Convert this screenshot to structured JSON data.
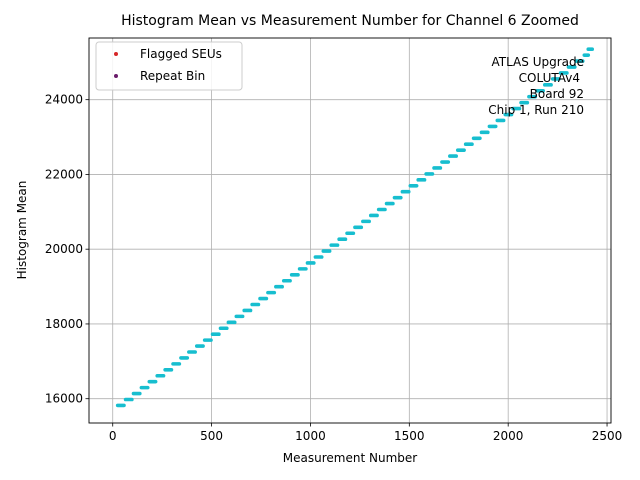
{
  "chart_data": {
    "type": "scatter",
    "title": "Histogram Mean vs Measurement Number for Channel 6 Zoomed",
    "xlabel": "Measurement Number",
    "ylabel": "Histogram Mean",
    "xlim": [
      -120,
      2520
    ],
    "ylim": [
      15350,
      25650
    ],
    "xticks": [
      0,
      500,
      1000,
      1500,
      2000,
      2500
    ],
    "yticks": [
      16000,
      18000,
      20000,
      22000,
      24000
    ],
    "grid": true,
    "legend": {
      "placement": "top-left",
      "entries": [
        {
          "name": "Flagged SEUs",
          "color": "#d62728"
        },
        {
          "name": "Repeat Bin",
          "color": "#6a1b6a"
        }
      ]
    },
    "series": [
      {
        "name": "Histogram Mean",
        "color": "#17becf",
        "x_start": 25,
        "x_end": 2405,
        "y_start": 15820,
        "y_end": 25350,
        "step_size": 40
      }
    ],
    "annotation": [
      "ATLAS Upgrade",
      "COLUTAv4",
      "Board 92",
      "Chip 1, Run 210"
    ]
  }
}
